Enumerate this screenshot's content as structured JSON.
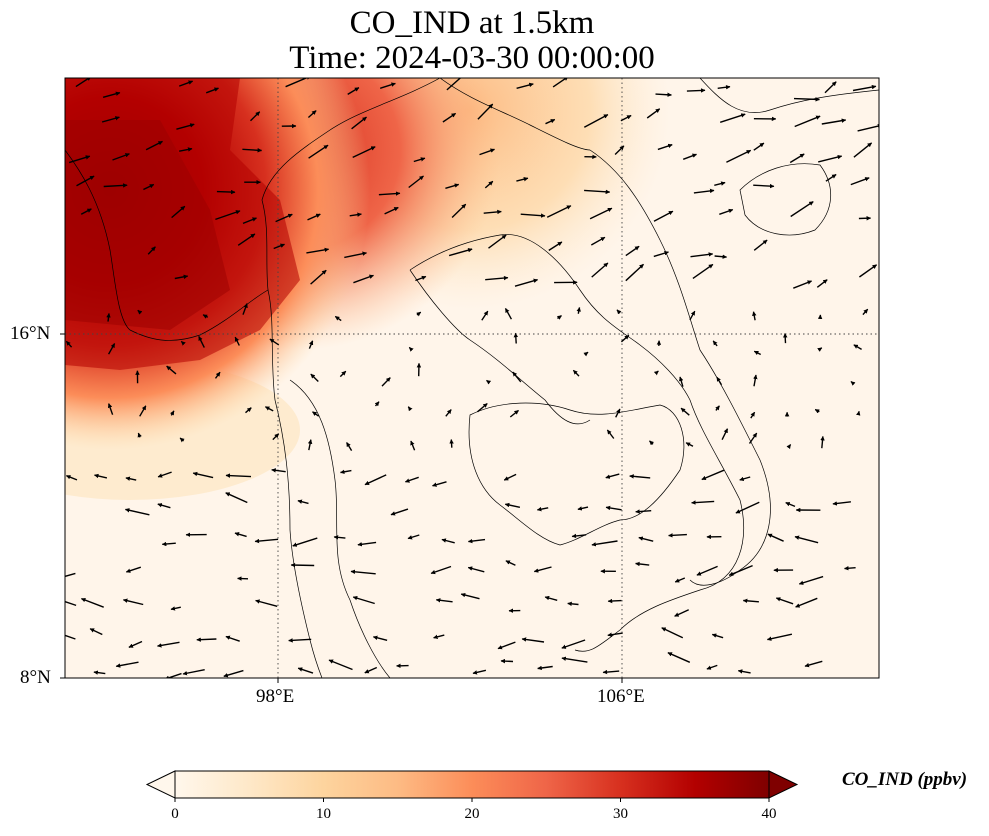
{
  "title": "CO_IND at 1.5km",
  "subtitle": "Time: 2024-03-30 00:00:00",
  "map": {
    "region": "Mainland Southeast Asia (Myanmar, Thailand, Laos, Cambodia, Vietnam, Hainan)",
    "variable": "CO_IND",
    "overlay": "wind vectors (quiver)",
    "gridlines": "dotted",
    "colormap": "OrRd",
    "high_concentration_area": "northwest (Myanmar / Bay of Bengal)",
    "low_concentration_area": "south and east (Gulf of Thailand, South China Sea)"
  },
  "axes": {
    "lat_ticks": [
      "16°N",
      "8°N"
    ],
    "lon_ticks": [
      "98°E",
      "106°E"
    ]
  },
  "colorbar": {
    "label": "CO_IND (ppbv)",
    "ticks": [
      "0",
      "10",
      "20",
      "30",
      "40"
    ],
    "min": 0,
    "max": 40,
    "extend": "both",
    "colors": [
      "#fff7ec",
      "#fee8c8",
      "#fdd49e",
      "#fdbb84",
      "#fc8d59",
      "#ef6548",
      "#d7301f",
      "#b30000",
      "#7f0000"
    ]
  }
}
